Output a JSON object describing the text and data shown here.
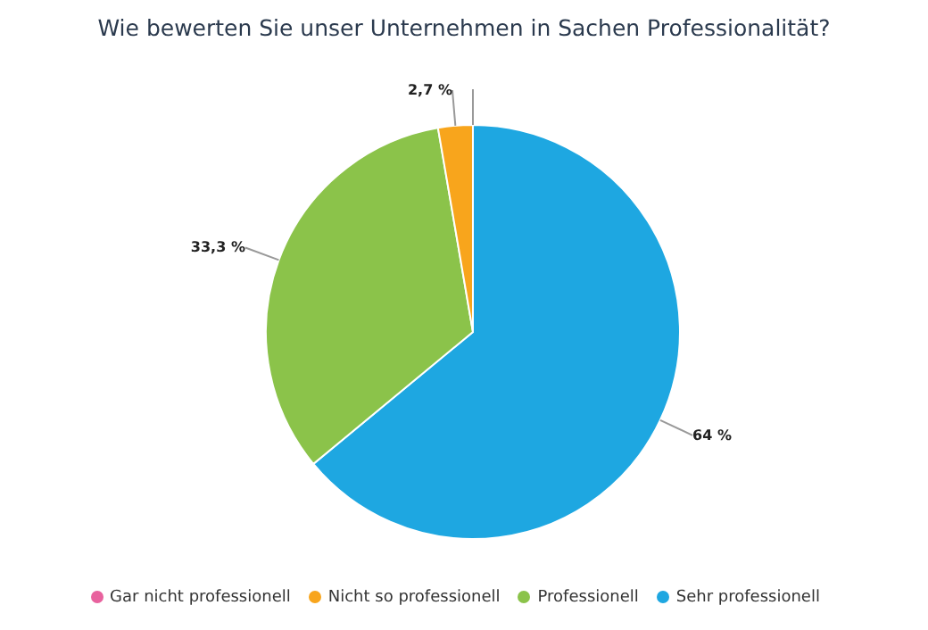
{
  "chart_data": {
    "type": "pie",
    "title": "Wie bewerten Sie unser Unternehmen in Sachen Professionalität?",
    "categories": [
      "Sehr professionell",
      "Professionell",
      "Nicht so professionell",
      "Gar nicht professionell"
    ],
    "values": [
      64,
      33.3,
      2.7,
      0
    ],
    "colors": [
      "#1ea7e1",
      "#8bc34a",
      "#f8a51c",
      "#e8629e"
    ],
    "value_labels": [
      "64 %",
      "33,3 %",
      "2,7 %",
      null
    ],
    "legend": "bottom"
  }
}
